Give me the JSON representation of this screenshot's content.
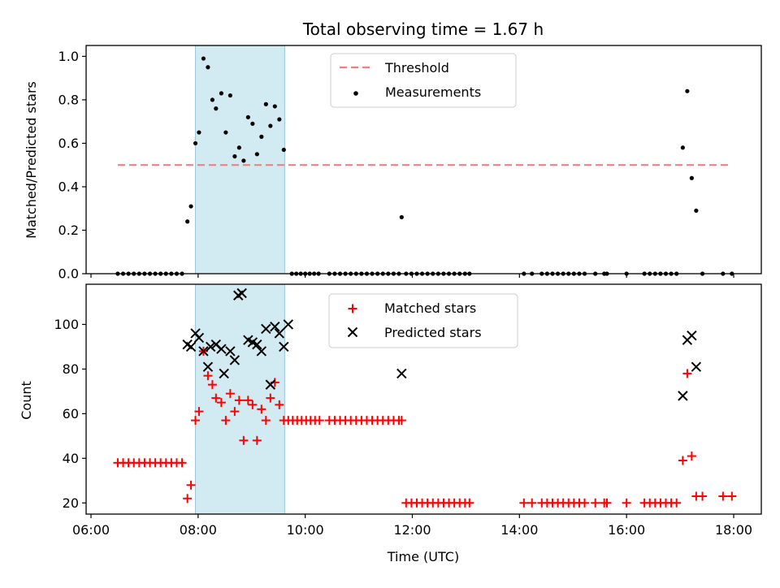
{
  "chart_data": [
    {
      "type": "scatter",
      "title": "Total observing time = 1.67 h",
      "xlabel": "",
      "ylabel": "Matched/Predicted stars",
      "xlim": [
        "06:00",
        "18:00"
      ],
      "ylim": [
        0,
        1.05
      ],
      "yticks": [
        0.0,
        0.2,
        0.4,
        0.6,
        0.8,
        1.0
      ],
      "ytick_labels": [
        "0.0",
        "0.2",
        "0.4",
        "0.6",
        "0.8",
        "1.0"
      ],
      "shaded_interval": [
        "07:57",
        "09:37"
      ],
      "legend": "top-center",
      "threshold": {
        "name": "Threshold",
        "value": 0.5,
        "x": [
          "06:30",
          "17:58"
        ],
        "color": "#f08080"
      },
      "series": [
        {
          "name": "Measurements",
          "color": "#000000",
          "points": [
            [
              "06:30",
              0
            ],
            [
              "06:36",
              0
            ],
            [
              "06:42",
              0
            ],
            [
              "06:48",
              0
            ],
            [
              "06:54",
              0
            ],
            [
              "07:00",
              0
            ],
            [
              "07:06",
              0
            ],
            [
              "07:12",
              0
            ],
            [
              "07:18",
              0
            ],
            [
              "07:24",
              0
            ],
            [
              "07:30",
              0
            ],
            [
              "07:36",
              0
            ],
            [
              "07:42",
              0
            ],
            [
              "07:48",
              0.24
            ],
            [
              "07:52",
              0.31
            ],
            [
              "07:57",
              0.6
            ],
            [
              "08:01",
              0.65
            ],
            [
              "08:06",
              0.99
            ],
            [
              "08:11",
              0.95
            ],
            [
              "08:16",
              0.8
            ],
            [
              "08:20",
              0.76
            ],
            [
              "08:26",
              0.83
            ],
            [
              "08:31",
              0.65
            ],
            [
              "08:36",
              0.82
            ],
            [
              "08:41",
              0.54
            ],
            [
              "08:46",
              0.58
            ],
            [
              "08:51",
              0.52
            ],
            [
              "08:56",
              0.72
            ],
            [
              "09:01",
              0.69
            ],
            [
              "09:06",
              0.55
            ],
            [
              "09:11",
              0.63
            ],
            [
              "09:16",
              0.78
            ],
            [
              "09:21",
              0.68
            ],
            [
              "09:26",
              0.77
            ],
            [
              "09:31",
              0.71
            ],
            [
              "09:36",
              0.57
            ],
            [
              "09:45",
              0
            ],
            [
              "09:50",
              0
            ],
            [
              "09:55",
              0
            ],
            [
              "10:00",
              0
            ],
            [
              "10:05",
              0
            ],
            [
              "10:10",
              0
            ],
            [
              "10:15",
              0
            ],
            [
              "10:27",
              0
            ],
            [
              "10:33",
              0
            ],
            [
              "10:39",
              0
            ],
            [
              "10:45",
              0
            ],
            [
              "10:51",
              0
            ],
            [
              "10:57",
              0
            ],
            [
              "11:03",
              0
            ],
            [
              "11:09",
              0
            ],
            [
              "11:15",
              0
            ],
            [
              "11:21",
              0
            ],
            [
              "11:27",
              0
            ],
            [
              "11:33",
              0
            ],
            [
              "11:39",
              0
            ],
            [
              "11:45",
              0
            ],
            [
              "11:48",
              0.26
            ],
            [
              "11:53",
              0
            ],
            [
              "11:59",
              0
            ],
            [
              "12:05",
              0
            ],
            [
              "12:11",
              0
            ],
            [
              "12:17",
              0
            ],
            [
              "12:23",
              0
            ],
            [
              "12:29",
              0
            ],
            [
              "12:35",
              0
            ],
            [
              "12:41",
              0
            ],
            [
              "12:47",
              0
            ],
            [
              "12:53",
              0
            ],
            [
              "12:59",
              0
            ],
            [
              "13:04",
              0
            ],
            [
              "14:05",
              0
            ],
            [
              "14:14",
              0
            ],
            [
              "14:25",
              0
            ],
            [
              "14:31",
              0
            ],
            [
              "14:37",
              0
            ],
            [
              "14:43",
              0
            ],
            [
              "14:49",
              0
            ],
            [
              "14:55",
              0
            ],
            [
              "15:01",
              0
            ],
            [
              "15:07",
              0
            ],
            [
              "15:13",
              0
            ],
            [
              "15:25",
              0
            ],
            [
              "15:35",
              0
            ],
            [
              "15:38",
              0
            ],
            [
              "16:00",
              0
            ],
            [
              "16:20",
              0
            ],
            [
              "16:26",
              0
            ],
            [
              "16:32",
              0
            ],
            [
              "16:38",
              0
            ],
            [
              "16:44",
              0
            ],
            [
              "16:50",
              0
            ],
            [
              "16:56",
              0
            ],
            [
              "17:03",
              0.58
            ],
            [
              "17:08",
              0.84
            ],
            [
              "17:13",
              0.44
            ],
            [
              "17:18",
              0.29
            ],
            [
              "17:25",
              0
            ],
            [
              "17:48",
              0
            ],
            [
              "17:58",
              0
            ]
          ]
        }
      ]
    },
    {
      "type": "scatter",
      "title": "",
      "xlabel": "Time (UTC)",
      "ylabel": "Count",
      "xlim": [
        "06:00",
        "18:00"
      ],
      "ylim": [
        15,
        118
      ],
      "xticks": [
        "06:00",
        "08:00",
        "10:00",
        "12:00",
        "14:00",
        "16:00",
        "18:00"
      ],
      "yticks": [
        20,
        40,
        60,
        80,
        100
      ],
      "ytick_labels": [
        "20",
        "40",
        "60",
        "80",
        "100"
      ],
      "shaded_interval": [
        "07:57",
        "09:37"
      ],
      "legend": "top-center",
      "series": [
        {
          "name": "Matched stars",
          "marker": "plus",
          "color": "#ff0000",
          "points": [
            [
              "06:30",
              38
            ],
            [
              "06:36",
              38
            ],
            [
              "06:42",
              38
            ],
            [
              "06:48",
              38
            ],
            [
              "06:54",
              38
            ],
            [
              "07:00",
              38
            ],
            [
              "07:06",
              38
            ],
            [
              "07:12",
              38
            ],
            [
              "07:18",
              38
            ],
            [
              "07:24",
              38
            ],
            [
              "07:30",
              38
            ],
            [
              "07:36",
              38
            ],
            [
              "07:42",
              38
            ],
            [
              "07:48",
              22
            ],
            [
              "07:52",
              28
            ],
            [
              "07:57",
              57
            ],
            [
              "08:01",
              61
            ],
            [
              "08:06",
              88
            ],
            [
              "08:11",
              77
            ],
            [
              "08:16",
              73
            ],
            [
              "08:20",
              67
            ],
            [
              "08:26",
              65
            ],
            [
              "08:31",
              57
            ],
            [
              "08:36",
              69
            ],
            [
              "08:41",
              61
            ],
            [
              "08:46",
              66
            ],
            [
              "08:51",
              48
            ],
            [
              "08:56",
              66
            ],
            [
              "09:01",
              64
            ],
            [
              "09:06",
              48
            ],
            [
              "09:11",
              62
            ],
            [
              "09:16",
              57
            ],
            [
              "09:21",
              67
            ],
            [
              "09:26",
              74
            ],
            [
              "09:31",
              64
            ],
            [
              "09:36",
              57
            ],
            [
              "09:41",
              57
            ],
            [
              "09:46",
              57
            ],
            [
              "09:51",
              57
            ],
            [
              "09:56",
              57
            ],
            [
              "10:01",
              57
            ],
            [
              "10:06",
              57
            ],
            [
              "10:11",
              57
            ],
            [
              "10:16",
              57
            ],
            [
              "10:27",
              57
            ],
            [
              "10:33",
              57
            ],
            [
              "10:39",
              57
            ],
            [
              "10:45",
              57
            ],
            [
              "10:51",
              57
            ],
            [
              "10:57",
              57
            ],
            [
              "11:03",
              57
            ],
            [
              "11:09",
              57
            ],
            [
              "11:15",
              57
            ],
            [
              "11:21",
              57
            ],
            [
              "11:27",
              57
            ],
            [
              "11:33",
              57
            ],
            [
              "11:39",
              57
            ],
            [
              "11:45",
              57
            ],
            [
              "11:48",
              57
            ],
            [
              "11:53",
              20
            ],
            [
              "11:59",
              20
            ],
            [
              "12:05",
              20
            ],
            [
              "12:11",
              20
            ],
            [
              "12:17",
              20
            ],
            [
              "12:23",
              20
            ],
            [
              "12:29",
              20
            ],
            [
              "12:35",
              20
            ],
            [
              "12:41",
              20
            ],
            [
              "12:47",
              20
            ],
            [
              "12:53",
              20
            ],
            [
              "12:59",
              20
            ],
            [
              "13:04",
              20
            ],
            [
              "14:05",
              20
            ],
            [
              "14:14",
              20
            ],
            [
              "14:25",
              20
            ],
            [
              "14:31",
              20
            ],
            [
              "14:37",
              20
            ],
            [
              "14:43",
              20
            ],
            [
              "14:49",
              20
            ],
            [
              "14:55",
              20
            ],
            [
              "15:01",
              20
            ],
            [
              "15:07",
              20
            ],
            [
              "15:13",
              20
            ],
            [
              "15:25",
              20
            ],
            [
              "15:35",
              20
            ],
            [
              "15:38",
              20
            ],
            [
              "16:00",
              20
            ],
            [
              "16:20",
              20
            ],
            [
              "16:26",
              20
            ],
            [
              "16:32",
              20
            ],
            [
              "16:38",
              20
            ],
            [
              "16:44",
              20
            ],
            [
              "16:50",
              20
            ],
            [
              "16:56",
              20
            ],
            [
              "17:03",
              39
            ],
            [
              "17:08",
              78
            ],
            [
              "17:13",
              41
            ],
            [
              "17:18",
              23
            ],
            [
              "17:25",
              23
            ],
            [
              "17:48",
              23
            ],
            [
              "17:58",
              23
            ]
          ]
        },
        {
          "name": "Predicted stars",
          "marker": "x",
          "color": "#000000",
          "points": [
            [
              "07:48",
              91
            ],
            [
              "07:52",
              90
            ],
            [
              "07:57",
              96
            ],
            [
              "08:01",
              94
            ],
            [
              "08:06",
              88
            ],
            [
              "08:11",
              81
            ],
            [
              "08:14",
              90
            ],
            [
              "08:20",
              91
            ],
            [
              "08:26",
              89
            ],
            [
              "08:29",
              78
            ],
            [
              "08:36",
              88
            ],
            [
              "08:41",
              84
            ],
            [
              "08:45",
              113
            ],
            [
              "08:49",
              114
            ],
            [
              "08:56",
              93
            ],
            [
              "09:01",
              92
            ],
            [
              "09:06",
              91
            ],
            [
              "09:11",
              88
            ],
            [
              "09:16",
              98
            ],
            [
              "09:21",
              73
            ],
            [
              "09:26",
              99
            ],
            [
              "09:31",
              96
            ],
            [
              "09:36",
              90
            ],
            [
              "09:41",
              100
            ],
            [
              "11:48",
              78
            ],
            [
              "17:03",
              68
            ],
            [
              "17:08",
              93
            ],
            [
              "17:13",
              95
            ],
            [
              "17:18",
              81
            ]
          ]
        }
      ]
    }
  ]
}
